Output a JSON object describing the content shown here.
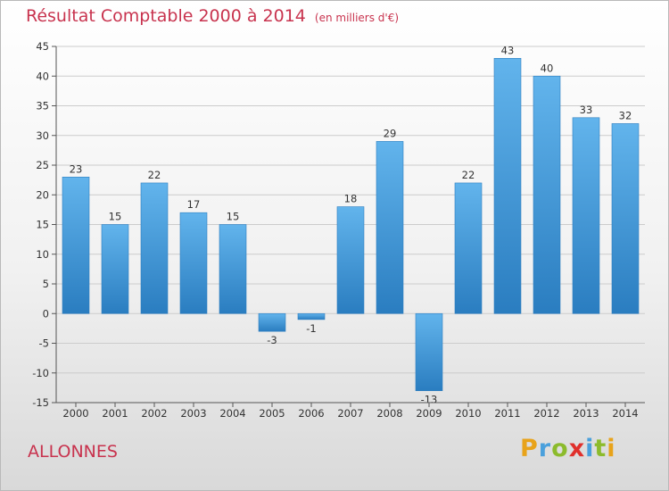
{
  "chart_data": {
    "type": "bar",
    "title": "Résultat Comptable 2000 à 2014",
    "subtitle": "(en milliers d'€)",
    "categories": [
      "2000",
      "2001",
      "2002",
      "2003",
      "2004",
      "2005",
      "2006",
      "2007",
      "2008",
      "2009",
      "2010",
      "2011",
      "2012",
      "2013",
      "2014"
    ],
    "values": [
      23,
      15,
      22,
      17,
      15,
      -3,
      -1,
      18,
      29,
      -13,
      22,
      43,
      40,
      33,
      32
    ],
    "value_labels": [
      "23",
      "15",
      "22",
      "17",
      "15",
      "-3",
      "-1",
      "18",
      "29",
      "-13",
      "22",
      "43",
      "40",
      "33",
      "32"
    ],
    "y_ticks": [
      45,
      40,
      35,
      30,
      25,
      20,
      15,
      10,
      5,
      0,
      -5,
      -10,
      -15
    ],
    "y_tick_labels": [
      "45",
      "40",
      "35",
      "30",
      "25",
      "20",
      "15",
      "10",
      "5",
      "0",
      "-5",
      "-10",
      "-15"
    ],
    "ylim": [
      -15,
      45
    ],
    "xlabel": "",
    "ylabel": "",
    "grid": true,
    "bar_color": "#3f93d6",
    "bar_color_light": "#62b4ec",
    "bar_color_dark": "#2a7dc0"
  },
  "commune": "ALLONNES",
  "brand": {
    "letters": [
      "P",
      "r",
      "o",
      "x",
      "i",
      "t",
      "i"
    ],
    "colors": [
      "#e8a31a",
      "#4aa0dc",
      "#8cbb2c",
      "#e0302c",
      "#4aa0dc",
      "#8cbb2c",
      "#e8a31a"
    ]
  },
  "colors": {
    "title": "#c8334e",
    "grid": "#cccccc",
    "axis": "#555555"
  }
}
